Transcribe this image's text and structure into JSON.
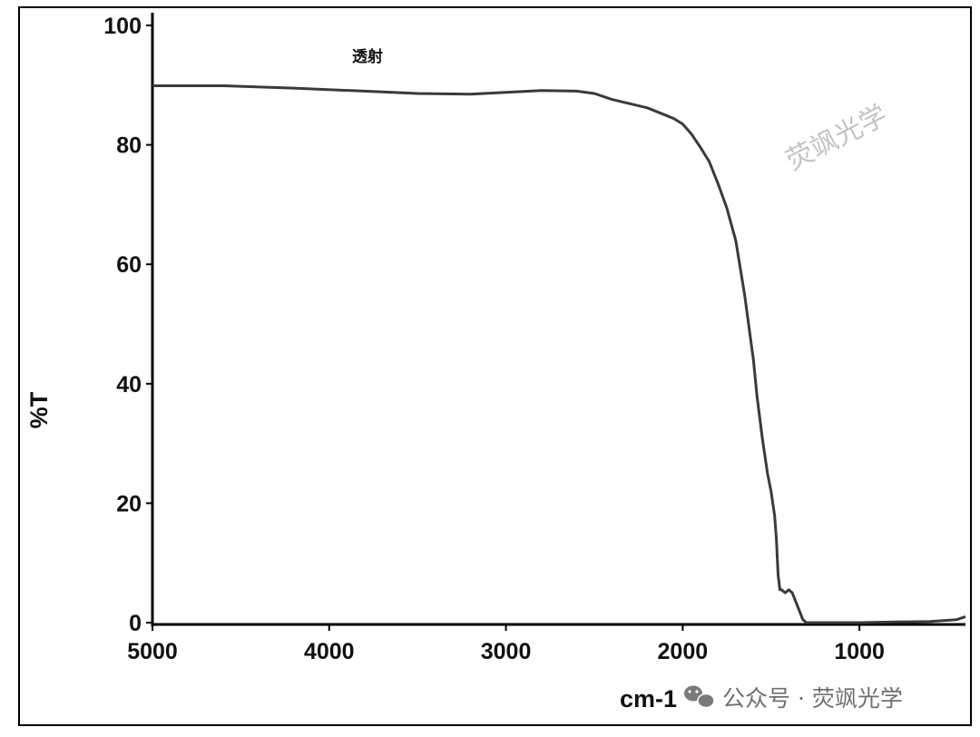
{
  "chart_data": {
    "type": "line",
    "title": "",
    "xlabel": "cm-1",
    "ylabel": "%T",
    "x_reversed": true,
    "xlim": [
      5000,
      400
    ],
    "ylim": [
      0,
      100
    ],
    "x_ticks": [
      "5000",
      "4000",
      "3000",
      "2000",
      "1000"
    ],
    "y_ticks": [
      "0",
      "20",
      "40",
      "60",
      "80",
      "100"
    ],
    "grid": false,
    "annotations": [
      {
        "text": "透射"
      }
    ],
    "series": [
      {
        "name": "",
        "color": "#3a3a3a",
        "x": [
          5000,
          4600,
          4200,
          3800,
          3500,
          3200,
          3000,
          2800,
          2600,
          2500,
          2400,
          2300,
          2200,
          2100,
          2050,
          2000,
          1950,
          1900,
          1850,
          1800,
          1750,
          1700,
          1650,
          1600,
          1580,
          1550,
          1520,
          1500,
          1480,
          1470,
          1460,
          1450,
          1440,
          1420,
          1400,
          1380,
          1360,
          1340,
          1320,
          1300,
          1200,
          1000,
          800,
          600,
          450,
          400
        ],
        "y": [
          89.9,
          89.9,
          89.5,
          89.0,
          88.6,
          88.5,
          88.8,
          89.1,
          89.0,
          88.6,
          87.6,
          86.9,
          86.2,
          85.0,
          84.4,
          83.5,
          81.8,
          79.6,
          77.2,
          73.5,
          69.4,
          64.0,
          55.0,
          44.0,
          38.0,
          31.0,
          25.0,
          22.0,
          18.0,
          14.0,
          8.0,
          5.5,
          5.5,
          5.0,
          5.5,
          5.0,
          3.5,
          2.0,
          0.5,
          0.0,
          0.0,
          0.0,
          0.1,
          0.2,
          0.5,
          1.0
        ]
      }
    ]
  },
  "watermark": {
    "diagonal_text": "荧飒光学",
    "footer_text": "公众号 · 荧飒光学",
    "footer_icon": "wechat-icon"
  }
}
